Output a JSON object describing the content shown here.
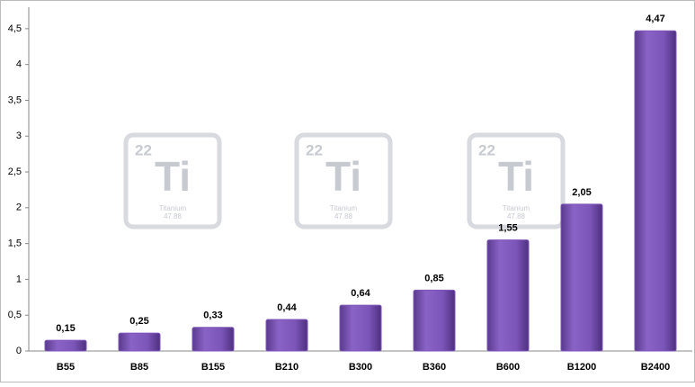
{
  "chart_data": {
    "type": "bar",
    "categories": [
      "B55",
      "B85",
      "B155",
      "B210",
      "B300",
      "B360",
      "B600",
      "B1200",
      "B2400"
    ],
    "values": [
      0.15,
      0.25,
      0.33,
      0.44,
      0.64,
      0.85,
      1.55,
      2.05,
      4.47
    ],
    "value_labels": [
      "0,15",
      "0,25",
      "0,33",
      "0,44",
      "0,64",
      "0,85",
      "1,55",
      "2,05",
      "4,47"
    ],
    "color": "#7c55b8",
    "ylim": [
      0,
      4.8
    ],
    "yticks": [
      0,
      {
        "value": 0.5,
        "label": "0,5"
      },
      1,
      {
        "value": 1.5,
        "label": "1,5"
      },
      2,
      {
        "value": 2.5,
        "label": "2,5"
      },
      3,
      {
        "value": 3.5,
        "label": "3,5"
      },
      4,
      {
        "value": 4.5,
        "label": "4,5"
      }
    ],
    "grid": false
  },
  "watermark": {
    "number": "22",
    "symbol": "Ti",
    "name": "Titanium",
    "mass": "47.88"
  }
}
